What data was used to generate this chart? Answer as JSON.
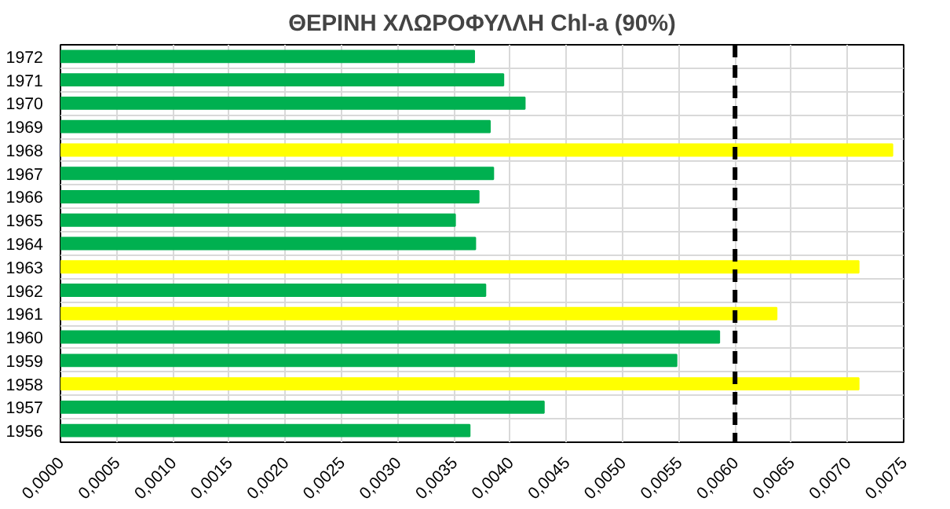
{
  "chart_data": {
    "type": "bar",
    "orientation": "horizontal",
    "title": "ΘΕΡΙΝΗ ΧΛΩΡΟΦΥΛΛΗ Chl-a (90%)",
    "categories": [
      "1972",
      "1971",
      "1970",
      "1969",
      "1968",
      "1967",
      "1966",
      "1965",
      "1964",
      "1963",
      "1962",
      "1961",
      "1960",
      "1959",
      "1958",
      "1957",
      "1956"
    ],
    "values": [
      0.00368,
      0.00394,
      0.00413,
      0.00382,
      0.0074,
      0.00385,
      0.00372,
      0.00351,
      0.00369,
      0.0071,
      0.00378,
      0.00637,
      0.00586,
      0.00548,
      0.0071,
      0.0043,
      0.00364
    ],
    "colors": [
      "#00b050",
      "#00b050",
      "#00b050",
      "#00b050",
      "#ffff00",
      "#00b050",
      "#00b050",
      "#00b050",
      "#00b050",
      "#ffff00",
      "#00b050",
      "#ffff00",
      "#00b050",
      "#00b050",
      "#ffff00",
      "#00b050",
      "#00b050"
    ],
    "xlim": [
      0,
      0.0075
    ],
    "xticks": [
      {
        "value": 0,
        "label": "0,0000"
      },
      {
        "value": 0.0005,
        "label": "0,0005"
      },
      {
        "value": 0.001,
        "label": "0,0010"
      },
      {
        "value": 0.0015,
        "label": "0,0015"
      },
      {
        "value": 0.002,
        "label": "0,0020"
      },
      {
        "value": 0.0025,
        "label": "0,0025"
      },
      {
        "value": 0.003,
        "label": "0,0030"
      },
      {
        "value": 0.0035,
        "label": "0,0035"
      },
      {
        "value": 0.004,
        "label": "0,0040"
      },
      {
        "value": 0.0045,
        "label": "0,0045"
      },
      {
        "value": 0.005,
        "label": "0,0050"
      },
      {
        "value": 0.0055,
        "label": "0,0055"
      },
      {
        "value": 0.006,
        "label": "0,0060"
      },
      {
        "value": 0.0065,
        "label": "0,0065"
      },
      {
        "value": 0.007,
        "label": "0,0070"
      },
      {
        "value": 0.0075,
        "label": "0,0075"
      }
    ],
    "ref_lines": [
      {
        "axis": "x",
        "value": 0.006,
        "color": "#000000",
        "line_style": "dashed"
      }
    ],
    "grid": true
  }
}
